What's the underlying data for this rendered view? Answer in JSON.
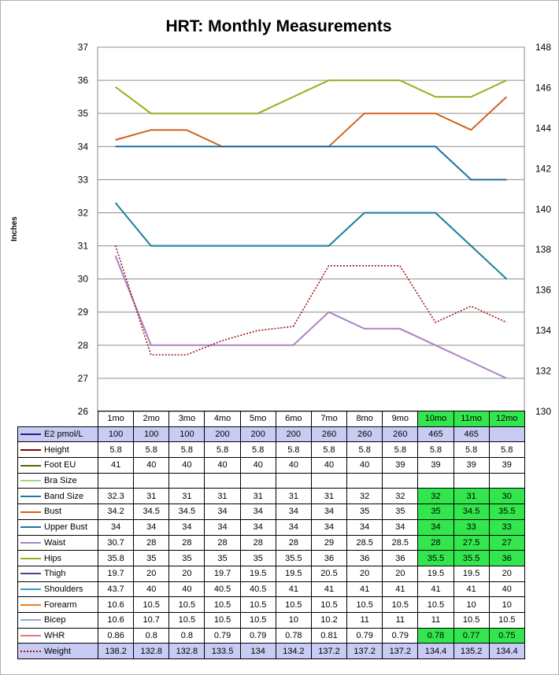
{
  "chart_data": {
    "type": "line",
    "title": "HRT: Monthly Measurements",
    "ylabel": "Inches",
    "ylim": [
      26,
      37
    ],
    "ylim_right": [
      130,
      148
    ],
    "yticks_left": [
      "26",
      "27",
      "28",
      "29",
      "30",
      "31",
      "32",
      "33",
      "34",
      "35",
      "36",
      "37"
    ],
    "yticks_right": [
      "130",
      "132",
      "134",
      "136",
      "138",
      "140",
      "142",
      "144",
      "146",
      "148"
    ],
    "categories": [
      "1mo",
      "2mo",
      "3mo",
      "4mo",
      "5mo",
      "6mo",
      "7mo",
      "8mo",
      "9mo",
      "10mo",
      "11mo",
      "12mo"
    ],
    "grid": true,
    "legend": "data-table",
    "series": [
      {
        "name": "E2 pmol/L",
        "color": "#1f1f7a",
        "plotted": false,
        "values": [
          "100",
          "100",
          "100",
          "200",
          "200",
          "200",
          "260",
          "260",
          "260",
          "465",
          "465",
          ""
        ]
      },
      {
        "name": "Height",
        "color": "#7a0000",
        "plotted": false,
        "values": [
          "5.8",
          "5.8",
          "5.8",
          "5.8",
          "5.8",
          "5.8",
          "5.8",
          "5.8",
          "5.8",
          "5.8",
          "5.8",
          "5.8"
        ]
      },
      {
        "name": "Foot EU",
        "color": "#4d6b00",
        "plotted": false,
        "values": [
          "41",
          "40",
          "40",
          "40",
          "40",
          "40",
          "40",
          "40",
          "39",
          "39",
          "39",
          "39"
        ]
      },
      {
        "name": "Bra Size",
        "color": "#a8d08d",
        "plotted": false,
        "values": [
          "",
          "",
          "",
          "",
          "",
          "",
          "",
          "",
          "",
          "",
          "",
          ""
        ]
      },
      {
        "name": "Band Size",
        "color": "#1a7f9a",
        "plotted": true,
        "values": [
          "32.3",
          "31",
          "31",
          "31",
          "31",
          "31",
          "31",
          "32",
          "32",
          "32",
          "31",
          "30"
        ]
      },
      {
        "name": "Bust",
        "color": "#d0621b",
        "plotted": true,
        "values": [
          "34.2",
          "34.5",
          "34.5",
          "34",
          "34",
          "34",
          "34",
          "35",
          "35",
          "35",
          "34.5",
          "35.5"
        ]
      },
      {
        "name": "Upper Bust",
        "color": "#1f6fa8",
        "plotted": true,
        "values": [
          "34",
          "34",
          "34",
          "34",
          "34",
          "34",
          "34",
          "34",
          "34",
          "34",
          "33",
          "33"
        ]
      },
      {
        "name": "Waist",
        "color": "#a884c4",
        "plotted": true,
        "values": [
          "30.7",
          "28",
          "28",
          "28",
          "28",
          "28",
          "29",
          "28.5",
          "28.5",
          "28",
          "27.5",
          "27"
        ]
      },
      {
        "name": "Hips",
        "color": "#8db31c",
        "plotted": true,
        "values": [
          "35.8",
          "35",
          "35",
          "35",
          "35",
          "35.5",
          "36",
          "36",
          "36",
          "35.5",
          "35.5",
          "36"
        ]
      },
      {
        "name": "Thigh",
        "color": "#5c3a8a",
        "plotted": false,
        "values": [
          "19.7",
          "20",
          "20",
          "19.7",
          "19.5",
          "19.5",
          "20.5",
          "20",
          "20",
          "19.5",
          "19.5",
          "20"
        ]
      },
      {
        "name": "Shoulders",
        "color": "#2aa0c8",
        "plotted": false,
        "values": [
          "43.7",
          "40",
          "40",
          "40.5",
          "40.5",
          "41",
          "41",
          "41",
          "41",
          "41",
          "41",
          "40"
        ]
      },
      {
        "name": "Forearm",
        "color": "#f07d1a",
        "plotted": false,
        "values": [
          "10.6",
          "10.5",
          "10.5",
          "10.5",
          "10.5",
          "10.5",
          "10.5",
          "10.5",
          "10.5",
          "10.5",
          "10",
          "10"
        ]
      },
      {
        "name": "Bicep",
        "color": "#8eaadb",
        "plotted": false,
        "values": [
          "10.6",
          "10.7",
          "10.5",
          "10.5",
          "10.5",
          "10",
          "10.2",
          "11",
          "11",
          "11",
          "10.5",
          "10.5"
        ]
      },
      {
        "name": "WHR",
        "color": "#e07a7a",
        "plotted": false,
        "values": [
          "0.86",
          "0.8",
          "0.8",
          "0.79",
          "0.79",
          "0.78",
          "0.81",
          "0.79",
          "0.79",
          "0.78",
          "0.77",
          "0.75"
        ]
      },
      {
        "name": "Weight",
        "color": "#a01414",
        "dashed": true,
        "axis": "right",
        "plotted": true,
        "values": [
          "138.2",
          "132.8",
          "132.8",
          "133.5",
          "134",
          "134.2",
          "137.2",
          "137.2",
          "137.2",
          "134.4",
          "135.2",
          "134.4"
        ]
      }
    ],
    "highlight_colors": {
      "green": "#33e64d",
      "blue": "#c8ccf4"
    },
    "highlights": {
      "E2 pmol/L": {
        "all": "blue"
      },
      "Weight": {
        "all": "blue"
      },
      "Band Size": {
        "from": 9,
        "color": "green"
      },
      "Bust": {
        "from": 9,
        "color": "green"
      },
      "Upper Bust": {
        "from": 9,
        "color": "green"
      },
      "Waist": {
        "from": 9,
        "color": "green"
      },
      "Hips": {
        "from": 9,
        "color": "green"
      },
      "WHR": {
        "from": 9,
        "color": "green"
      },
      "header": {
        "from": 9,
        "color": "green"
      }
    }
  }
}
